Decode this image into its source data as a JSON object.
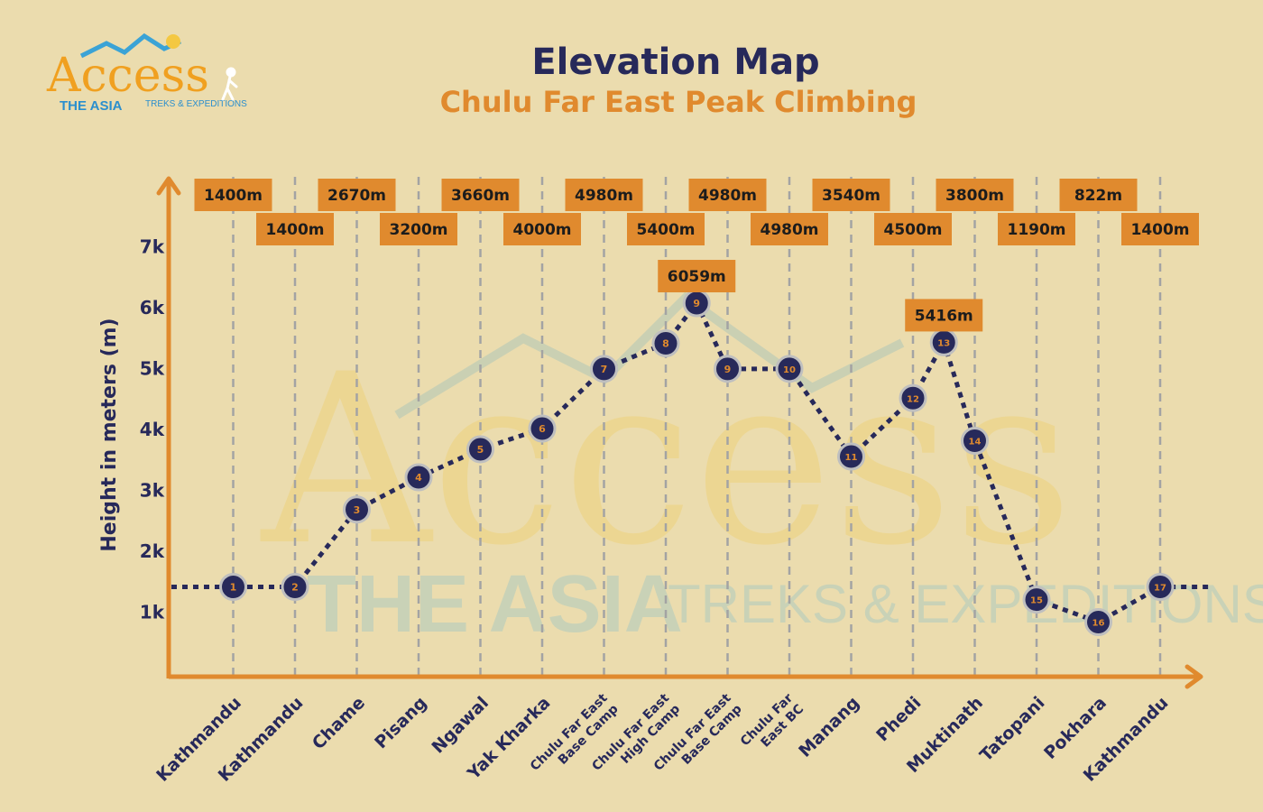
{
  "logo": {
    "main": "Access",
    "sub1": "THE ASIA",
    "sub2": "TREKS & EXPEDITIONS"
  },
  "header": {
    "title": "Elevation Map",
    "subtitle": "Chulu Far East Peak Climbing"
  },
  "colors": {
    "background": "#ebdcae",
    "navy": "#27295a",
    "orange": "#e08a2e",
    "label_box": "#e08a2e",
    "grid": "#a3a3a3"
  },
  "chart_data": {
    "type": "line",
    "title": "Elevation Map",
    "subtitle": "Chulu Far East Peak Climbing",
    "xlabel": "",
    "ylabel": "Height in meters (m)",
    "yticks": [
      "1k",
      "2k",
      "3k",
      "4k",
      "5k",
      "6k",
      "7k"
    ],
    "ylim": [
      0,
      7900
    ],
    "grid": "vertical dashed lines",
    "categories": [
      "Kathmandu",
      "Kathmandu",
      "Chame",
      "Pisang",
      "Ngawal",
      "Yak Kharka",
      "Chulu Far East Base Camp",
      "Chulu Far East High Camp",
      "Chulu Far East Base Camp",
      "Chulu Far East BC",
      "Manang",
      "Phedi",
      "Muktinath",
      "Tatopani",
      "Pokhara",
      "Kathmandu"
    ],
    "category_lines": [
      [
        "Kathmandu"
      ],
      [
        "Kathmandu"
      ],
      [
        "Chame"
      ],
      [
        "Pisang"
      ],
      [
        "Ngawal"
      ],
      [
        "Yak Kharka"
      ],
      [
        "Chulu Far East",
        "Base Camp"
      ],
      [
        "Chulu Far East",
        "High Camp"
      ],
      [
        "Chulu Far East",
        "Base Camp"
      ],
      [
        "Chulu Far",
        "East BC"
      ],
      [
        "Manang"
      ],
      [
        "Phedi"
      ],
      [
        "Muktinath"
      ],
      [
        "Tatopani"
      ],
      [
        "Pokhara"
      ],
      [
        "Kathmandu"
      ]
    ],
    "points": [
      {
        "day": "1",
        "x": 1,
        "y": 1400,
        "label": "1400m"
      },
      {
        "day": "2",
        "x": 2,
        "y": 1400,
        "label": "1400m"
      },
      {
        "day": "3",
        "x": 3,
        "y": 2670,
        "label": "2670m"
      },
      {
        "day": "4",
        "x": 4,
        "y": 3200,
        "label": "3200m"
      },
      {
        "day": "5",
        "x": 5,
        "y": 3660,
        "label": "3660m"
      },
      {
        "day": "6",
        "x": 6,
        "y": 4000,
        "label": "4000m"
      },
      {
        "day": "7",
        "x": 7,
        "y": 4980,
        "label": "4980m"
      },
      {
        "day": "8",
        "x": 8,
        "y": 5400,
        "label": "5400m"
      },
      {
        "day": "9",
        "x": 8.5,
        "y": 6059,
        "label": "6059m"
      },
      {
        "day": "9",
        "x": 9,
        "y": 4980,
        "label": "4980m"
      },
      {
        "day": "10",
        "x": 10,
        "y": 4980,
        "label": "4980m"
      },
      {
        "day": "11",
        "x": 11,
        "y": 3540,
        "label": "3540m"
      },
      {
        "day": "12",
        "x": 12,
        "y": 4500,
        "label": "4500m"
      },
      {
        "day": "13",
        "x": 12.5,
        "y": 5416,
        "label": "5416m"
      },
      {
        "day": "14",
        "x": 13,
        "y": 3800,
        "label": "3800m"
      },
      {
        "day": "15",
        "x": 14,
        "y": 1190,
        "label": "1190m"
      },
      {
        "day": "16",
        "x": 15,
        "y": 822,
        "label": "822m"
      },
      {
        "day": "17",
        "x": 16,
        "y": 1400,
        "label": "1400m"
      }
    ]
  }
}
